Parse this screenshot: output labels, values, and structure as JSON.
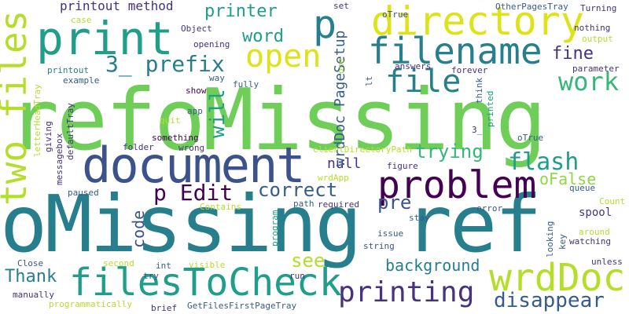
{
  "words": {
    "refoMissing": "refoMissing",
    "oMissingref": "oMissing ref",
    "document": "document",
    "print": "print",
    "directory": "directory",
    "filename": "filename",
    "problem": "problem",
    "filesToCheck": "filesToCheck",
    "wrdDoc": "wrdDoc",
    "printing": "printing",
    "two_files": "two files",
    "open": "open",
    "p_top": "p",
    "file": "file",
    "work": "work",
    "p_edit": "p Edit",
    "flash": "flash",
    "correct": "correct",
    "trying": "trying",
    "disappear": "disappear",
    "background": "background",
    "Thank": "Thank",
    "word": "word",
    "fine": "fine",
    "prefix3": "3_ prefix",
    "printer": "printer",
    "printout_method": "printout method",
    "null": "null",
    "pre": "pre",
    "see": "see",
    "will": "will",
    "oFalse": "oFalse",
    "code": "code",
    "wrdDoc_PageSetup": "wrdDoc PageSetup",
    "letterHeadTray": "letterHeadTray",
    "messagebox": "messagebox",
    "defaultTray": "defaultTray",
    "giving": "giving",
    "case": "case",
    "Object": "Object",
    "opening": "opening",
    "set": "set",
    "oTrue": "oTrue",
    "OtherPagesTray": "OtherPagesTray",
    "Turning": "Turning",
    "nothing": "nothing",
    "output": "output",
    "printout": "printout",
    "way": "way",
    "example": "example",
    "fully": "fully",
    "show": "show",
    "app": "app",
    "quit": "quit",
    "something": "something",
    "folder": "folder",
    "wrong": "wrong",
    "clientDirectoryPath": "clientDirectoryPath",
    "wrdApp": "wrdApp",
    "answers": "answers",
    "parameter": "parameter",
    "forever": "forever",
    "think": "think",
    "printed": "printed",
    "lt": "lt",
    "one": "one",
    "three_": "3_",
    "oTrue2": "oTrue",
    "paused": "paused",
    "required": "required",
    "path": "path",
    "Contains": "Contains",
    "figure": "figure",
    "queue": "queue",
    "error": "error",
    "spool": "spool",
    "Count": "Count",
    "stay": "stay",
    "program": "program",
    "issue": "issue",
    "string": "string",
    "around": "around",
    "watching": "watching",
    "unless": "unless",
    "looking": "looking",
    "key": "key",
    "Close": "Close",
    "second": "second",
    "int": "int",
    "visible": "visible",
    "try": "try",
    "run": "run",
    "manually": "manually",
    "programmatically": "programmatically",
    "brief": "brief",
    "GetFilesFirstPageTray": "GetFilesFirstPageTray"
  }
}
